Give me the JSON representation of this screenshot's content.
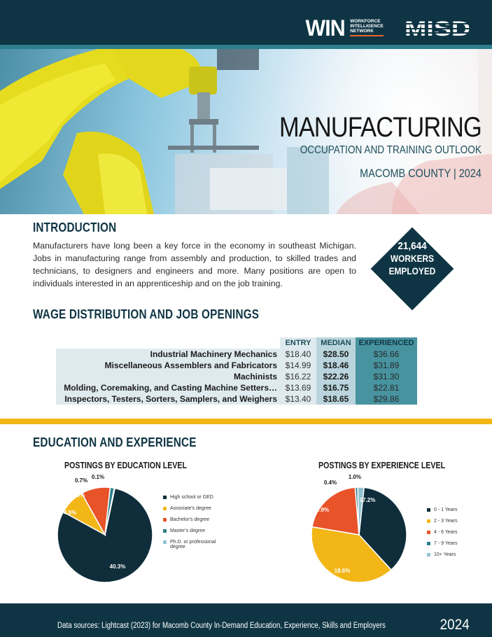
{
  "header": {
    "win_logo": "WIN",
    "win_sub": [
      "WORKFORCE",
      "INTELLIGENCE",
      "NETWORK"
    ],
    "misd_logo": "MISD"
  },
  "hero": {
    "title": "MANUFACTURING",
    "subtitle": "OCCUPATION AND TRAINING OUTLOOK",
    "location": "MACOMB COUNTY | 2024"
  },
  "intro": {
    "heading": "INTRODUCTION",
    "body": "Manufacturers have long been a key force in the economy in southeast Michigan. Jobs in manufacturing range from assembly and production, to skilled trades and technicians, to designers and engineers and more. Many positions are open to individuals interested in an apprenticeship and on the job training.",
    "workers_count": "21,644",
    "workers_label_1": "WORKERS",
    "workers_label_2": "EMPLOYED"
  },
  "wages": {
    "heading": "WAGE DISTRIBUTION AND JOB OPENINGS",
    "columns": [
      "ENTRY",
      "MEDIAN",
      "EXPERIENCED"
    ],
    "rows": [
      {
        "occupation": "Industrial Machinery Mechanics",
        "entry": "$18.40",
        "median": "$28.50",
        "experienced": "$36.66"
      },
      {
        "occupation": "Miscellaneous Assemblers and Fabricators",
        "entry": "$14.99",
        "median": "$18.46",
        "experienced": "$31.89"
      },
      {
        "occupation": "Machinists",
        "entry": "$16.22",
        "median": "$22.26",
        "experienced": "$31.30"
      },
      {
        "occupation": "Molding, Coremaking, and Casting Machine Setters…",
        "entry": "$13.69",
        "median": "$16.75",
        "experienced": "$22.81"
      },
      {
        "occupation": "Inspectors, Testers, Sorters, Samplers, and Weighers",
        "entry": "$13.40",
        "median": "$18.65",
        "experienced": "$29.86"
      }
    ]
  },
  "education": {
    "heading": "EDUCATION AND EXPERIENCE"
  },
  "colors": {
    "navy": "#0f3544",
    "gold": "#f2b617",
    "orange": "#e8532a",
    "teal": "#2d7f8c",
    "light_teal": "#8fc3cf"
  },
  "chart_data": [
    {
      "type": "pie",
      "title": "POSTINGS BY EDUCATION LEVEL",
      "categories": [
        "High school or GED",
        "Associate's degree",
        "Bachelor's degree",
        "Master's degree",
        "Ph.D. or professional degree"
      ],
      "values": [
        40.3,
        4.5,
        5.0,
        0.7,
        0.1
      ],
      "labels": [
        "40.3%",
        "4.5%",
        "5.0%",
        "0.7%",
        "0.1%"
      ],
      "colors": [
        "#0f2d3a",
        "#f2b617",
        "#e8532a",
        "#2d7f8c",
        "#8fc3cf"
      ],
      "legend": "right"
    },
    {
      "type": "pie",
      "title": "POSTINGS BY EXPERIENCE LEVEL",
      "categories": [
        "0 - 1 Years",
        "2 - 3 Years",
        "4 - 6 Years",
        "7 - 9 Years",
        "10+ Years"
      ],
      "values": [
        17.2,
        18.6,
        9.9,
        0.4,
        1.0
      ],
      "labels": [
        "17.2%",
        "18.6%",
        "9.9%",
        "0.4%",
        "1.0%"
      ],
      "colors": [
        "#0f2d3a",
        "#f2b617",
        "#e8532a",
        "#2d7f8c",
        "#8fc3cf"
      ],
      "legend": "right"
    }
  ],
  "footer": {
    "sources": "Data sources: Lightcast (2023) for Macomb County In-Demand Education, Experience, Skills and Employers",
    "year": "2024"
  }
}
